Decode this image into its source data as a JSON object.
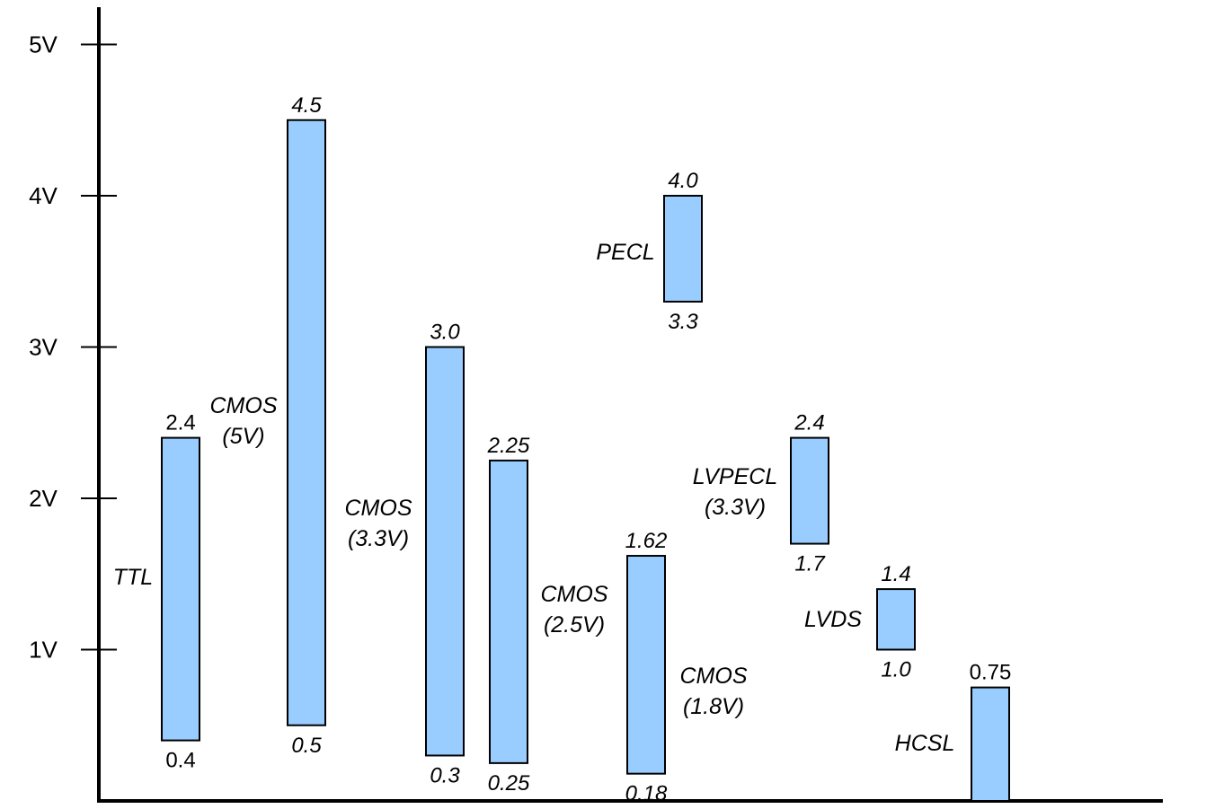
{
  "chart_data": {
    "type": "bar",
    "title": "",
    "xlabel": "",
    "ylabel": "",
    "ylim": [
      0,
      5.25
    ],
    "grid": false,
    "yticks": [
      {
        "value": 1,
        "label": "1V"
      },
      {
        "value": 2,
        "label": "2V"
      },
      {
        "value": 3,
        "label": "3V"
      },
      {
        "value": 4,
        "label": "4V"
      },
      {
        "value": 5,
        "label": "5V"
      }
    ],
    "bar_color": "#99ccff",
    "bar_stroke": "#000000",
    "bars": [
      {
        "id": "ttl",
        "name": [
          "TTL"
        ],
        "low": 0.4,
        "high": 2.4,
        "low_label": "0.4",
        "high_label": "2.4",
        "italic_values": false
      },
      {
        "id": "cmos-5v",
        "name": [
          "CMOS",
          "(5V)"
        ],
        "low": 0.5,
        "high": 4.5,
        "low_label": "0.5",
        "high_label": "4.5",
        "italic_values": true
      },
      {
        "id": "cmos-3v3",
        "name": [
          "CMOS",
          "(3.3V)"
        ],
        "low": 0.3,
        "high": 3.0,
        "low_label": "0.3",
        "high_label": "3.0",
        "italic_values": true
      },
      {
        "id": "cmos-2v5",
        "name": [
          "CMOS",
          "(2.5V)"
        ],
        "low": 0.25,
        "high": 2.25,
        "low_label": "0.25",
        "high_label": "2.25",
        "italic_values": true
      },
      {
        "id": "cmos-1v8",
        "name": [
          "CMOS",
          "(1.8V)"
        ],
        "low": 0.18,
        "high": 1.62,
        "low_label": "0.18",
        "high_label": "1.62",
        "italic_values": true
      },
      {
        "id": "pecl",
        "name": [
          "PECL"
        ],
        "low": 3.3,
        "high": 4.0,
        "low_label": "3.3",
        "high_label": "4.0",
        "italic_values": true
      },
      {
        "id": "lvpecl",
        "name": [
          "LVPECL",
          "(3.3V)"
        ],
        "low": 1.7,
        "high": 2.4,
        "low_label": "1.7",
        "high_label": "2.4",
        "italic_values": true
      },
      {
        "id": "lvds",
        "name": [
          "LVDS"
        ],
        "low": 1.0,
        "high": 1.4,
        "low_label": "1.0",
        "high_label": "1.4",
        "italic_values": true
      },
      {
        "id": "hcsl",
        "name": [
          "HCSL"
        ],
        "low": 0.0,
        "high": 0.75,
        "low_label": "",
        "high_label": "0.75",
        "italic_values": false
      }
    ]
  }
}
